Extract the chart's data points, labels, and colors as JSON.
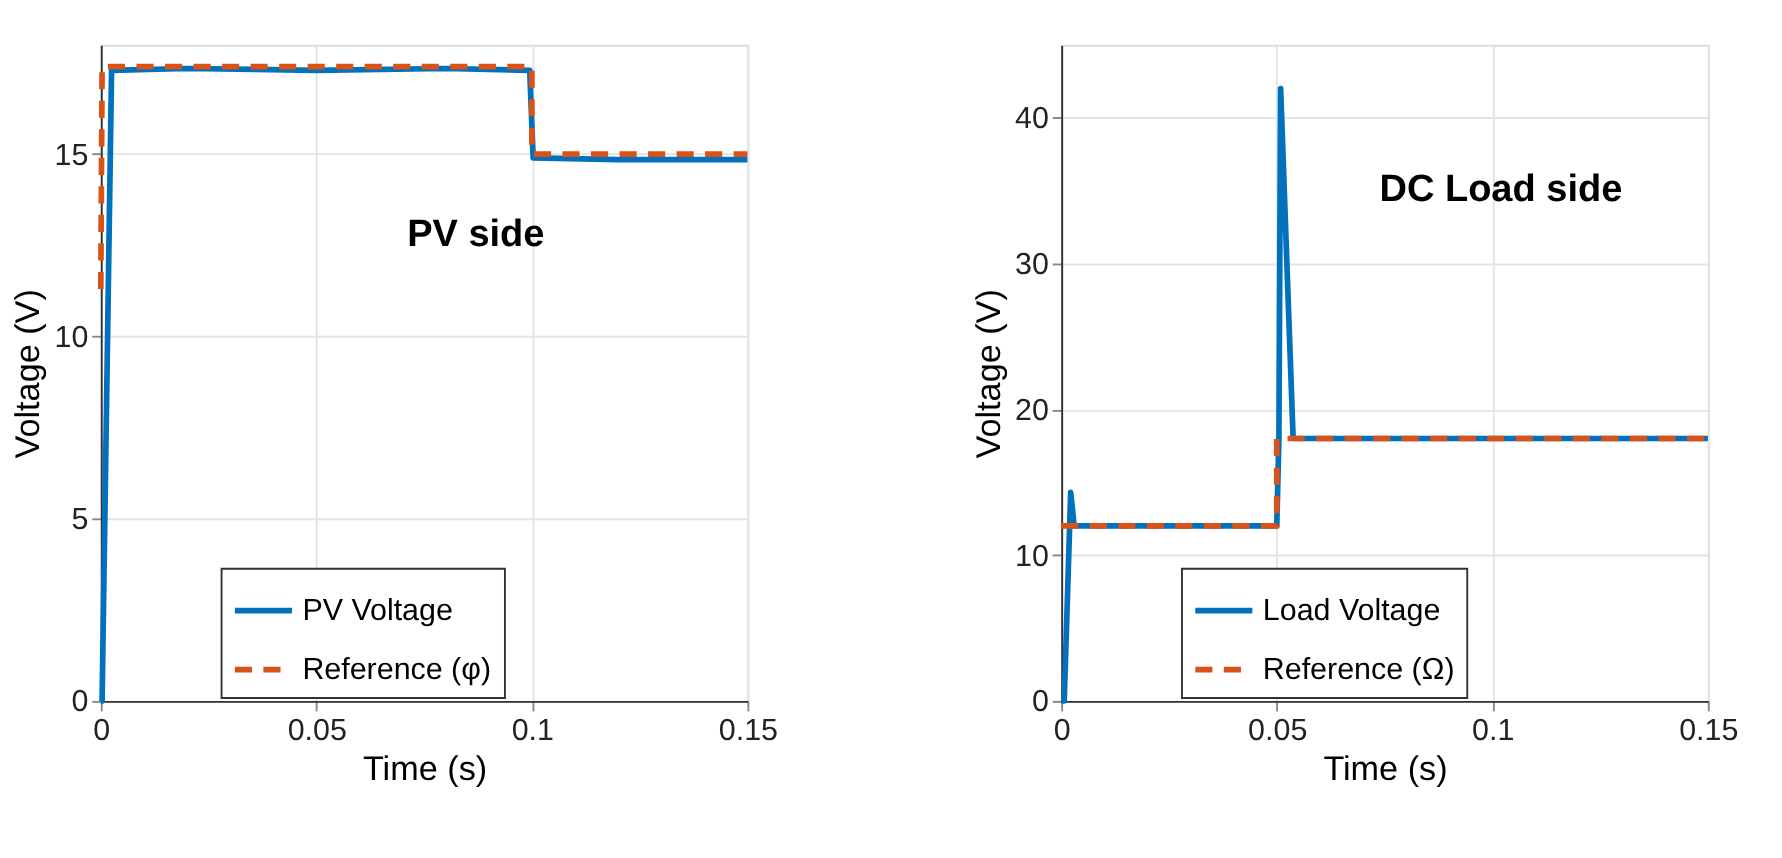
{
  "chart_data": [
    {
      "type": "line",
      "xlabel": "Time (s)",
      "ylabel": "Voltage (V)",
      "annotations": [
        "PV side"
      ],
      "xlim": [
        0,
        0.15
      ],
      "xticks": [
        0,
        0.05,
        {
          "value": 0.1,
          "label": "0.1"
        },
        0.15
      ],
      "ylim": [
        0,
        18
      ],
      "yticks": [
        0,
        5,
        10,
        15
      ],
      "grid": true,
      "legend": "bottom",
      "series": [
        {
          "name": "PV Voltage",
          "color": "#0072bd",
          "line_style": "solid",
          "x": [
            0,
            0.0003,
            0.0025,
            0.02,
            0.05,
            0.08,
            0.0995,
            0.1003,
            0.12,
            0.15
          ],
          "values": [
            0,
            0,
            17.3,
            17.35,
            17.3,
            17.35,
            17.3,
            14.9,
            14.85,
            14.85
          ]
        },
        {
          "name": "Reference (φ)",
          "color": "#d95319",
          "line_style": "dashed",
          "x": [
            0,
            0.0003,
            0.1,
            0.1,
            0.15
          ],
          "values": [
            11.3,
            17.4,
            17.4,
            15,
            15
          ]
        }
      ]
    },
    {
      "type": "line",
      "xlabel": "Time (s)",
      "ylabel": "Voltage (V)",
      "annotations": [
        "DC Load side"
      ],
      "xlim": [
        0,
        0.15
      ],
      "xticks": [
        0,
        0.05,
        {
          "value": 0.1,
          "label": "0.1"
        },
        0.15
      ],
      "ylim": [
        0,
        45
      ],
      "yticks": [
        0,
        10,
        20,
        30,
        40
      ],
      "grid": true,
      "legend": "bottom",
      "series": [
        {
          "name": "Load Voltage",
          "color": "#0072bd",
          "line_style": "solid",
          "x": [
            0,
            0.0007,
            0.0022,
            0.003,
            0.05,
            0.0505,
            0.0509,
            0.0538,
            0.15
          ],
          "values": [
            0,
            0,
            14.3,
            12,
            12,
            18,
            42,
            18,
            18
          ]
        },
        {
          "name": "Reference (Ω)",
          "color": "#d95319",
          "line_style": "dashed",
          "x": [
            0,
            0.05,
            0.05,
            0.15
          ],
          "values": [
            12,
            12,
            18,
            18
          ]
        }
      ]
    }
  ]
}
